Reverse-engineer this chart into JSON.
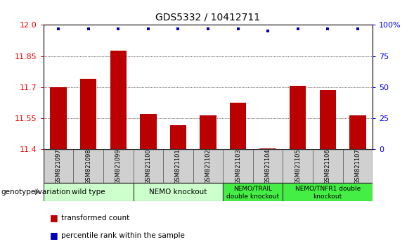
{
  "title": "GDS5332 / 10412711",
  "samples": [
    "GSM821097",
    "GSM821098",
    "GSM821099",
    "GSM821100",
    "GSM821101",
    "GSM821102",
    "GSM821103",
    "GSM821104",
    "GSM821105",
    "GSM821106",
    "GSM821107"
  ],
  "bar_values": [
    11.7,
    11.74,
    11.875,
    11.57,
    11.515,
    11.565,
    11.625,
    11.405,
    11.705,
    11.685,
    11.565
  ],
  "percentile_values": [
    97,
    97,
    97,
    97,
    97,
    97,
    97,
    95,
    97,
    97,
    97
  ],
  "ylim": [
    11.4,
    12.0
  ],
  "yticks_left": [
    11.4,
    11.55,
    11.7,
    11.85,
    12.0
  ],
  "yticks_right": [
    0,
    25,
    50,
    75,
    100
  ],
  "bar_color": "#bb0000",
  "dot_color": "#0000bb",
  "group_boxes": [
    {
      "start": 0,
      "end": 2,
      "label1": "wild type",
      "label2": "",
      "color": "#ccffcc"
    },
    {
      "start": 3,
      "end": 5,
      "label1": "NEMO knockout",
      "label2": "",
      "color": "#ccffcc"
    },
    {
      "start": 6,
      "end": 7,
      "label1": "NEMO/TRAIL",
      "label2": "double knockout",
      "color": "#44ee44"
    },
    {
      "start": 8,
      "end": 10,
      "label1": "NEMO/TNFR1 double",
      "label2": "knockout",
      "color": "#44ee44"
    }
  ],
  "legend_bar_label": "transformed count",
  "legend_dot_label": "percentile rank within the sample",
  "genotype_label": "genotype/variation"
}
